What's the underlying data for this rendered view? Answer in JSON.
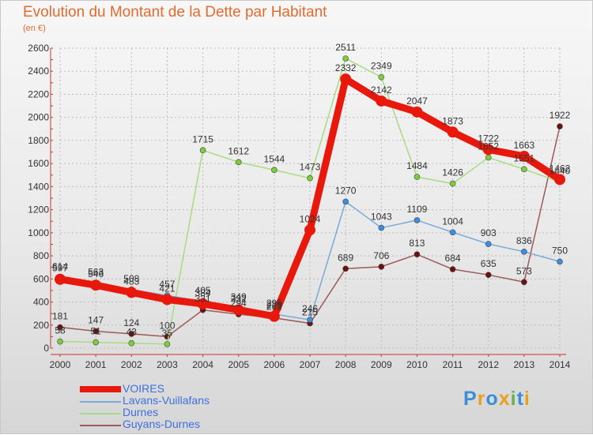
{
  "title": "Evolution du Montant de la Dette par Habitant",
  "subtitle": "(en €)",
  "logo": {
    "letters": [
      "P",
      "r",
      "o",
      "x",
      "i",
      "t",
      "i"
    ],
    "colors": [
      "#3a8fd6",
      "#e8a020",
      "#3a8fd6",
      "#e8a020",
      "#6ab04c",
      "#3a8fd6",
      "#e8a020"
    ]
  },
  "chart_data": {
    "type": "line",
    "title": "Evolution du Montant de la Dette par Habitant",
    "xlabel": "",
    "ylabel": "(en €)",
    "x": [
      "2000",
      "2001",
      "2002",
      "2003",
      "2004",
      "2005",
      "2006",
      "2007",
      "2008",
      "2009",
      "2010",
      "2011",
      "2012",
      "2013",
      "2014"
    ],
    "ylim": [
      0,
      2600
    ],
    "yticks": [
      "0",
      "200",
      "400",
      "600",
      "800",
      "1000",
      "1200",
      "1400",
      "1600",
      "1800",
      "2000",
      "2200",
      "2400",
      "2600"
    ],
    "grid": true,
    "legend_position": "bottom-left",
    "series": [
      {
        "name": "VOIRES",
        "color": "#e8180c",
        "point_color": "#e8180c",
        "values": [
          597,
          546,
          483,
          421,
          384,
          332,
          276,
          1024,
          2332,
          2142,
          2047,
          1873,
          1722,
          1663,
          1462
        ],
        "labels": [
          "597",
          "546",
          "483",
          "421",
          "384",
          "332",
          "276",
          "1024",
          "2332",
          "2142",
          "2047",
          "1873",
          "1722",
          "1663",
          "1462"
        ]
      },
      {
        "name": "Lavans-Vuillafans",
        "color": "#7aaad8",
        "point_color": "#3d8ee0",
        "values": [
          614,
          563,
          508,
          457,
          405,
          349,
          295,
          246,
          1270,
          1043,
          1109,
          1004,
          903,
          836,
          750
        ],
        "labels": [
          "614",
          "563",
          "508",
          "457",
          "405",
          "349",
          "295",
          "246",
          "1270",
          "1043",
          "1109",
          "1004",
          "903",
          "836",
          "750"
        ]
      },
      {
        "name": "Durnes",
        "color": "#a6dc82",
        "point_color": "#7ccf3a",
        "values": [
          58,
          51,
          43,
          35,
          1715,
          1612,
          1544,
          1473,
          2511,
          2349,
          1484,
          1426,
          1652,
          1551,
          1440
        ],
        "labels": [
          "58",
          "51",
          "43",
          "35",
          "1715",
          "1612",
          "1544",
          "1473",
          "2511",
          "2349",
          "1484",
          "1426",
          "1652",
          "1551",
          "1440"
        ]
      },
      {
        "name": "Guyans-Durnes",
        "color": "#9c5a5a",
        "point_color": "#6e1010",
        "values": [
          181,
          147,
          124,
          100,
          331,
          294,
          262,
          215,
          689,
          706,
          813,
          684,
          635,
          573,
          1922
        ],
        "labels": [
          "181",
          "147",
          "124",
          "100",
          "331",
          "294",
          "262",
          "215",
          "689",
          "706",
          "813",
          "684",
          "635",
          "573",
          "1922"
        ]
      }
    ]
  }
}
